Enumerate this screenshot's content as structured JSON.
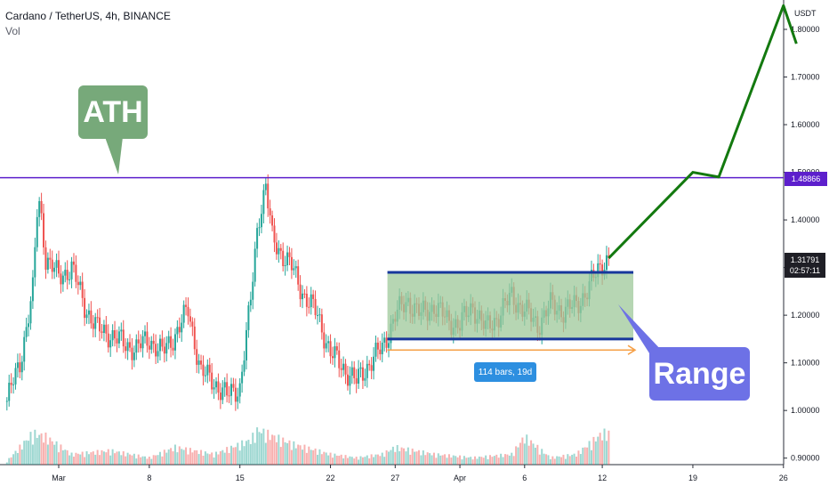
{
  "chart_data": {
    "type": "candlestick",
    "title": "Cardano / TetherUS, 4h, BINANCE",
    "subtitle": "Vol",
    "ylabel": "USDT",
    "ylim": [
      0.89,
      1.89
    ],
    "y_ticks": [
      "1.80000",
      "1.70000",
      "1.60000",
      "1.50000",
      "1.40000",
      "1.30000",
      "1.20000",
      "1.10000",
      "1.00000",
      "0.90000"
    ],
    "x_ticks": [
      "Mar",
      "8",
      "15",
      "22",
      "27",
      "Apr",
      "6",
      "12",
      "19",
      "26"
    ],
    "x_tick_days": [
      1,
      8,
      15,
      22,
      27,
      32,
      37,
      43,
      50,
      57
    ],
    "ath_level": 1.48866,
    "ath_label": "1.48866",
    "last_price": "1.31791",
    "countdown": "02:57:11",
    "range": {
      "top": 1.29,
      "bottom": 1.15,
      "start_day": 26.4,
      "end_day": 45.4
    },
    "measure_label": "114 bars, 19d",
    "annotations": {
      "ath": "ATH",
      "range": "Range"
    },
    "price_path": [
      [
        -3,
        1.02
      ],
      [
        -2,
        1.1
      ],
      [
        -1,
        1.25
      ],
      [
        -0.6,
        1.45
      ],
      [
        -0.3,
        1.4
      ],
      [
        0,
        1.32
      ],
      [
        1,
        1.28
      ],
      [
        2,
        1.3
      ],
      [
        3,
        1.22
      ],
      [
        4,
        1.17
      ],
      [
        5,
        1.16
      ],
      [
        6,
        1.14
      ],
      [
        7,
        1.13
      ],
      [
        8,
        1.15
      ],
      [
        9,
        1.12
      ],
      [
        10,
        1.16
      ],
      [
        11,
        1.21
      ],
      [
        12,
        1.08
      ],
      [
        13,
        1.06
      ],
      [
        14,
        1.03
      ],
      [
        15,
        1.05
      ],
      [
        15.8,
        1.22
      ],
      [
        16.4,
        1.4
      ],
      [
        17,
        1.47
      ],
      [
        17.5,
        1.36
      ],
      [
        18,
        1.34
      ],
      [
        19,
        1.3
      ],
      [
        20,
        1.24
      ],
      [
        21,
        1.2
      ],
      [
        22,
        1.12
      ],
      [
        23,
        1.09
      ],
      [
        24,
        1.06
      ],
      [
        25,
        1.1
      ],
      [
        26,
        1.13
      ],
      [
        27,
        1.2
      ],
      [
        28,
        1.23
      ],
      [
        29,
        1.2
      ],
      [
        30,
        1.22
      ],
      [
        31,
        1.19
      ],
      [
        32,
        1.18
      ],
      [
        33,
        1.22
      ],
      [
        34,
        1.17
      ],
      [
        35,
        1.2
      ],
      [
        36,
        1.24
      ],
      [
        37,
        1.21
      ],
      [
        38,
        1.18
      ],
      [
        39,
        1.22
      ],
      [
        40,
        1.21
      ],
      [
        41,
        1.22
      ],
      [
        42,
        1.26
      ],
      [
        43,
        1.31
      ],
      [
        43.5,
        1.32
      ]
    ],
    "volume": [
      [
        -3,
        0.1
      ],
      [
        -1,
        0.9
      ],
      [
        0,
        0.8
      ],
      [
        2,
        0.3
      ],
      [
        5,
        0.4
      ],
      [
        8,
        0.2
      ],
      [
        10,
        0.5
      ],
      [
        13,
        0.3
      ],
      [
        15.8,
        0.7
      ],
      [
        16.4,
        1.0
      ],
      [
        17,
        0.9
      ],
      [
        19,
        0.6
      ],
      [
        22,
        0.3
      ],
      [
        24,
        0.2
      ],
      [
        26,
        0.3
      ],
      [
        27,
        0.5
      ],
      [
        30,
        0.3
      ],
      [
        33,
        0.2
      ],
      [
        36,
        0.3
      ],
      [
        37,
        0.8
      ],
      [
        39,
        0.2
      ],
      [
        41,
        0.3
      ],
      [
        43,
        0.9
      ]
    ],
    "projection": [
      [
        43.5,
        1.32
      ],
      [
        50,
        1.5
      ],
      [
        52,
        1.49
      ],
      [
        57,
        1.85
      ],
      [
        58,
        1.77
      ]
    ],
    "range_projection_label": "",
    "colors": {
      "up": "#26a69a",
      "down": "#ef5350",
      "range_fill": "#9dc89a",
      "range_border": "#17379c",
      "ath_line": "#5d1fcc",
      "projection": "#13790f",
      "measure": "#f6a047"
    }
  }
}
